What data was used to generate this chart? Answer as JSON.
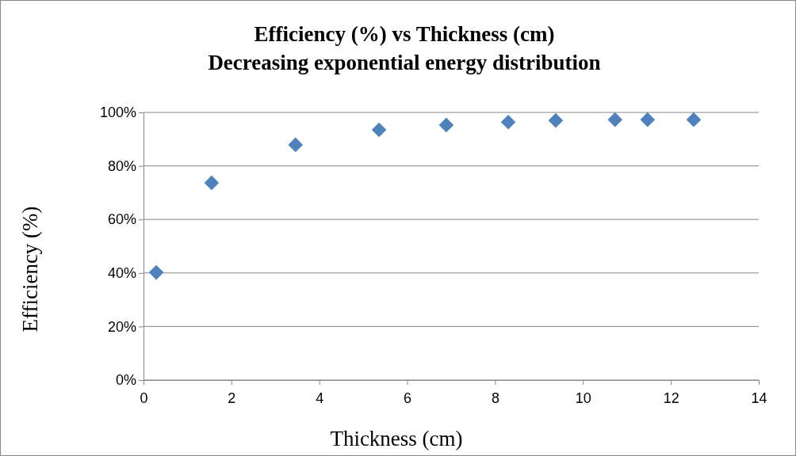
{
  "chart_data": {
    "type": "scatter",
    "title": "Efficiency (%) vs Thickness (cm)",
    "subtitle": "Decreasing exponential energy distribution",
    "xlabel": "Thickness (cm)",
    "ylabel": "Efficiency (%)",
    "x": [
      0.29,
      1.55,
      3.46,
      5.36,
      6.89,
      8.3,
      9.38,
      10.73,
      11.47,
      12.52
    ],
    "series": [
      {
        "color": "#4f81bd",
        "values": [
          40.2,
          73.7,
          87.9,
          93.5,
          95.3,
          96.4,
          97.0,
          97.3,
          97.3,
          97.3
        ]
      }
    ],
    "xlim": [
      0,
      14
    ],
    "xticks": [
      0,
      2,
      4,
      6,
      8,
      10,
      12,
      14
    ],
    "ylim": [
      0,
      100
    ],
    "yticks": [
      {
        "value": 0,
        "label": "0%"
      },
      {
        "value": 20,
        "label": "20%"
      },
      {
        "value": 40,
        "label": "40%"
      },
      {
        "value": 60,
        "label": "60%"
      },
      {
        "value": 80,
        "label": "80%"
      },
      {
        "value": 100,
        "label": "100%"
      }
    ],
    "grid": "y",
    "marker": "diamond"
  }
}
